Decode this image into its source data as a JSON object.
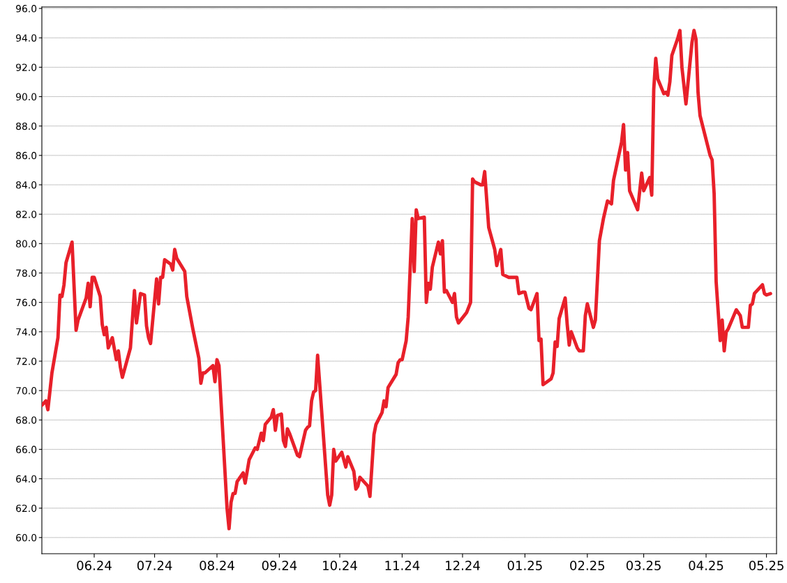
{
  "chart_data": {
    "type": "line",
    "grid": "y",
    "marker": "none",
    "line_style": "solid",
    "xlim": [
      "2024-05-06",
      "2025-05-06"
    ],
    "ylim": [
      58.9,
      96.1
    ],
    "xticks": [
      {
        "value": "2024-06-01",
        "label": "06.24"
      },
      {
        "value": "2024-07-01",
        "label": "07.24"
      },
      {
        "value": "2024-08-01",
        "label": "08.24"
      },
      {
        "value": "2024-09-01",
        "label": "09.24"
      },
      {
        "value": "2024-10-01",
        "label": "10.24"
      },
      {
        "value": "2024-11-01",
        "label": "11.24"
      },
      {
        "value": "2024-12-01",
        "label": "12.24"
      },
      {
        "value": "2025-01-01",
        "label": "01.25"
      },
      {
        "value": "2025-02-01",
        "label": "02.25"
      },
      {
        "value": "2025-03-01",
        "label": "03.25"
      },
      {
        "value": "2025-04-01",
        "label": "04.25"
      },
      {
        "value": "2025-05-01",
        "label": "05.25"
      }
    ],
    "yticks": [
      {
        "value": 60,
        "label": "60.0"
      },
      {
        "value": 62,
        "label": "62.0"
      },
      {
        "value": 64,
        "label": "64.0"
      },
      {
        "value": 66,
        "label": "66.0"
      },
      {
        "value": 68,
        "label": "68.0"
      },
      {
        "value": 70,
        "label": "70.0"
      },
      {
        "value": 72,
        "label": "72.0"
      },
      {
        "value": 74,
        "label": "74.0"
      },
      {
        "value": 76,
        "label": "76.0"
      },
      {
        "value": 78,
        "label": "78.0"
      },
      {
        "value": 80,
        "label": "80.0"
      },
      {
        "value": 82,
        "label": "82.0"
      },
      {
        "value": 84,
        "label": "84.0"
      },
      {
        "value": 86,
        "label": "86.0"
      },
      {
        "value": 88,
        "label": "88.0"
      },
      {
        "value": 90,
        "label": "90.0"
      },
      {
        "value": 92,
        "label": "92.0"
      },
      {
        "value": 94,
        "label": "94.0"
      },
      {
        "value": 96,
        "label": "96.0"
      }
    ],
    "x": [
      "2024-05-06",
      "2024-05-08",
      "2024-05-09",
      "2024-05-11",
      "2024-05-14",
      "2024-05-15",
      "2024-05-16",
      "2024-05-17",
      "2024-05-18",
      "2024-05-21",
      "2024-05-23",
      "2024-05-24",
      "2024-05-28",
      "2024-05-29",
      "2024-05-30",
      "2024-05-31",
      "2024-06-01",
      "2024-06-04",
      "2024-06-05",
      "2024-06-06",
      "2024-06-07",
      "2024-06-08",
      "2024-06-10",
      "2024-06-12",
      "2024-06-13",
      "2024-06-14",
      "2024-06-15",
      "2024-06-19",
      "2024-06-21",
      "2024-06-22",
      "2024-06-24",
      "2024-06-26",
      "2024-06-27",
      "2024-06-28",
      "2024-06-29",
      "2024-07-02",
      "2024-07-03",
      "2024-07-04",
      "2024-07-05",
      "2024-07-06",
      "2024-07-09",
      "2024-07-10",
      "2024-07-11",
      "2024-07-12",
      "2024-07-16",
      "2024-07-17",
      "2024-07-20",
      "2024-07-23",
      "2024-07-24",
      "2024-07-25",
      "2024-07-26",
      "2024-07-30",
      "2024-07-31",
      "2024-08-01",
      "2024-08-02",
      "2024-08-06",
      "2024-08-07",
      "2024-08-08",
      "2024-08-09",
      "2024-08-10",
      "2024-08-11",
      "2024-08-14",
      "2024-08-15",
      "2024-08-17",
      "2024-08-20",
      "2024-08-21",
      "2024-08-23",
      "2024-08-24",
      "2024-08-25",
      "2024-08-28",
      "2024-08-29",
      "2024-08-30",
      "2024-08-31",
      "2024-09-02",
      "2024-09-03",
      "2024-09-04",
      "2024-09-05",
      "2024-09-06",
      "2024-09-10",
      "2024-09-11",
      "2024-09-12",
      "2024-09-14",
      "2024-09-15",
      "2024-09-16",
      "2024-09-17",
      "2024-09-18",
      "2024-09-19",
      "2024-09-20",
      "2024-09-25",
      "2024-09-26",
      "2024-09-27",
      "2024-09-28",
      "2024-09-29",
      "2024-10-02",
      "2024-10-04",
      "2024-10-05",
      "2024-10-08",
      "2024-10-09",
      "2024-10-10",
      "2024-10-11",
      "2024-10-15",
      "2024-10-16",
      "2024-10-18",
      "2024-10-19",
      "2024-10-22",
      "2024-10-23",
      "2024-10-24",
      "2024-10-25",
      "2024-10-29",
      "2024-10-30",
      "2024-10-31",
      "2024-11-01",
      "2024-11-03",
      "2024-11-04",
      "2024-11-06",
      "2024-11-07",
      "2024-11-08",
      "2024-11-09",
      "2024-11-12",
      "2024-11-13",
      "2024-11-14",
      "2024-11-15",
      "2024-11-16",
      "2024-11-19",
      "2024-11-20",
      "2024-11-21",
      "2024-11-22",
      "2024-11-23",
      "2024-11-26",
      "2024-11-27",
      "2024-11-28",
      "2024-11-29",
      "2024-12-03",
      "2024-12-05",
      "2024-12-06",
      "2024-12-07",
      "2024-12-10",
      "2024-12-11",
      "2024-12-12",
      "2024-12-14",
      "2024-12-17",
      "2024-12-18",
      "2024-12-19",
      "2024-12-20",
      "2024-12-21",
      "2024-12-24",
      "2024-12-28",
      "2024-12-29",
      "2024-12-31",
      "2025-01-01",
      "2025-01-03",
      "2025-01-04",
      "2025-01-07",
      "2025-01-08",
      "2025-01-09",
      "2025-01-10",
      "2025-01-14",
      "2025-01-15",
      "2025-01-16",
      "2025-01-17",
      "2025-01-18",
      "2025-01-21",
      "2025-01-22",
      "2025-01-23",
      "2025-01-24",
      "2025-01-27",
      "2025-01-28",
      "2025-01-30",
      "2025-01-31",
      "2025-02-01",
      "2025-02-04",
      "2025-02-05",
      "2025-02-07",
      "2025-02-09",
      "2025-02-11",
      "2025-02-13",
      "2025-02-14",
      "2025-02-18",
      "2025-02-19",
      "2025-02-20",
      "2025-02-21",
      "2025-02-22",
      "2025-02-26",
      "2025-02-28",
      "2025-03-01",
      "2025-03-04",
      "2025-03-05",
      "2025-03-06",
      "2025-03-07",
      "2025-03-08",
      "2025-03-11",
      "2025-03-12",
      "2025-03-13",
      "2025-03-14",
      "2025-03-15",
      "2025-03-18",
      "2025-03-19",
      "2025-03-20",
      "2025-03-22",
      "2025-03-25",
      "2025-03-26",
      "2025-03-27",
      "2025-03-28",
      "2025-03-29",
      "2025-04-03",
      "2025-04-04",
      "2025-04-05",
      "2025-04-06",
      "2025-04-08",
      "2025-04-09",
      "2025-04-10",
      "2025-04-11",
      "2025-04-12",
      "2025-04-16",
      "2025-04-18",
      "2025-04-19",
      "2025-04-22",
      "2025-04-23",
      "2025-04-24",
      "2025-04-25",
      "2025-04-29",
      "2025-04-30",
      "2025-05-01",
      "2025-05-03"
    ],
    "series": [
      {
        "color": "#e8202a",
        "values": [
          69.0,
          69.3,
          68.7,
          71.2,
          73.6,
          76.5,
          76.4,
          77.2,
          78.7,
          80.1,
          74.1,
          74.8,
          76.3,
          77.3,
          75.7,
          77.7,
          77.7,
          76.4,
          74.5,
          73.8,
          74.3,
          72.9,
          73.6,
          72.1,
          72.7,
          71.6,
          70.9,
          72.9,
          76.8,
          74.6,
          76.6,
          76.5,
          74.4,
          73.6,
          73.2,
          77.6,
          75.9,
          77.7,
          77.7,
          78.9,
          78.6,
          78.2,
          79.6,
          79.0,
          78.1,
          76.4,
          74.2,
          72.2,
          70.5,
          71.2,
          71.2,
          71.7,
          70.6,
          72.1,
          71.7,
          62.0,
          60.6,
          62.4,
          63.0,
          63.0,
          63.8,
          64.4,
          63.7,
          65.3,
          66.1,
          66.0,
          67.1,
          66.6,
          67.7,
          68.2,
          68.7,
          67.3,
          68.3,
          68.4,
          66.6,
          66.2,
          67.4,
          67.1,
          65.6,
          65.5,
          66.1,
          67.3,
          67.5,
          67.6,
          69.3,
          69.9,
          70.0,
          72.4,
          62.9,
          62.2,
          62.9,
          66.0,
          65.2,
          65.8,
          64.8,
          65.5,
          64.5,
          63.3,
          63.5,
          64.1,
          63.5,
          62.8,
          67.0,
          67.7,
          68.5,
          69.3,
          68.9,
          70.2,
          71.1,
          71.9,
          72.1,
          72.1,
          73.4,
          75.0,
          81.7,
          78.1,
          82.3,
          81.7,
          81.8,
          76.0,
          77.3,
          76.9,
          78.4,
          80.1,
          79.3,
          80.2,
          76.7,
          76.8,
          76.0,
          76.6,
          75.0,
          74.6,
          75.3,
          76.0,
          84.4,
          84.2,
          84.0,
          84.0,
          84.9,
          81.1,
          79.6,
          78.5,
          79.1,
          79.6,
          77.9,
          77.7,
          77.7,
          76.6,
          76.7,
          76.7,
          75.6,
          75.5,
          76.6,
          73.4,
          73.5,
          70.4,
          70.8,
          71.2,
          73.3,
          73.0,
          74.9,
          76.3,
          74.5,
          73.1,
          74.0,
          72.9,
          72.7,
          72.7,
          75.1,
          75.9,
          74.3,
          74.8,
          80.2,
          81.7,
          82.9,
          82.7,
          84.3,
          86.9,
          88.1,
          85.0,
          86.2,
          83.6,
          82.3,
          84.8,
          83.6,
          84.5,
          83.3,
          90.5,
          92.6,
          91.2,
          90.2,
          90.3,
          90.1,
          91.0,
          92.8,
          94.0,
          94.5,
          92.0,
          89.5,
          93.7,
          94.5,
          93.9,
          90.3,
          88.7,
          86.0,
          85.7,
          83.4,
          77.4,
          73.4,
          74.8,
          72.7,
          74.0,
          74.2,
          75.5,
          75.1,
          74.3,
          74.3,
          75.8,
          75.9,
          76.6,
          77.2,
          76.6,
          76.5,
          76.6
        ]
      }
    ]
  }
}
